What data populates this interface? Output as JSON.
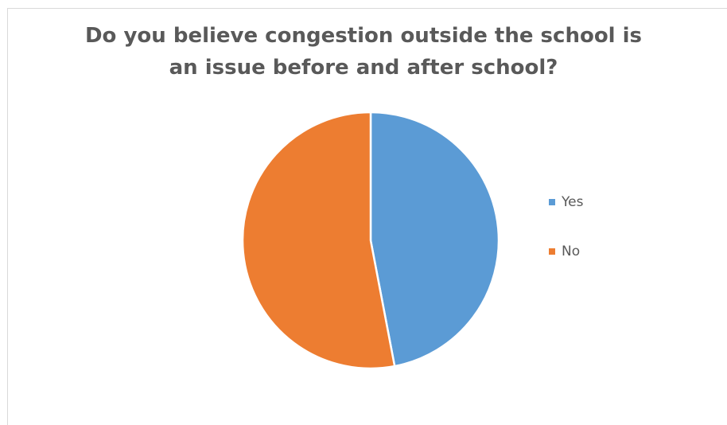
{
  "chart_data": {
    "type": "pie",
    "title_lines": [
      "Do you believe congestion outside the school is",
      "an issue before and after school?"
    ],
    "categories": [
      "Yes",
      "No"
    ],
    "values": [
      47,
      53
    ],
    "colors": [
      "#5b9bd5",
      "#ed7d31"
    ],
    "legend_position": "right",
    "start_angle_deg": 0,
    "direction": "clockwise"
  }
}
